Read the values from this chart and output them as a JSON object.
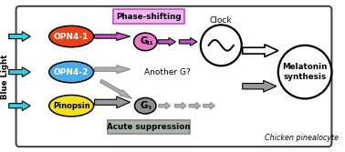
{
  "fig_width": 3.78,
  "fig_height": 1.67,
  "dpi": 100,
  "bg_color": "#ffffff",
  "opn4_1_color": "#e8421a",
  "opn4_2_color": "#4baae8",
  "pinopsin_color": "#f0e020",
  "g11_color": "#e87cc8",
  "gt_color": "#909090",
  "phase_box_color": "#f0b8f0",
  "phase_box_ec": "#cc44cc",
  "acute_box_color": "#a8b4a8",
  "acute_box_ec": "#888888",
  "cyan_arrow_color": "#30d0e0",
  "pink_arrow_color": "#cc55cc",
  "gray_arrow_color": "#999999",
  "gray_arrow_color2": "#b0b0b0",
  "white_arrow_fc": "#ffffff",
  "title": "Chicken pinealocyte",
  "opn4_1_label": "OPN4-1",
  "opn4_2_label": "OPN4-2",
  "pinopsin_label": "Pinopsin",
  "g11_label": "G",
  "g11_sub": "11",
  "gt_label": "G",
  "gt_sub": "t",
  "phase_label": "Phase-shifting",
  "acute_label": "Acute suppression",
  "clock_label": "Clock",
  "melatonin_label": "Melatonin\nsynthesis",
  "blue_light_label": "Blue Light",
  "another_g_label": "Another G?"
}
